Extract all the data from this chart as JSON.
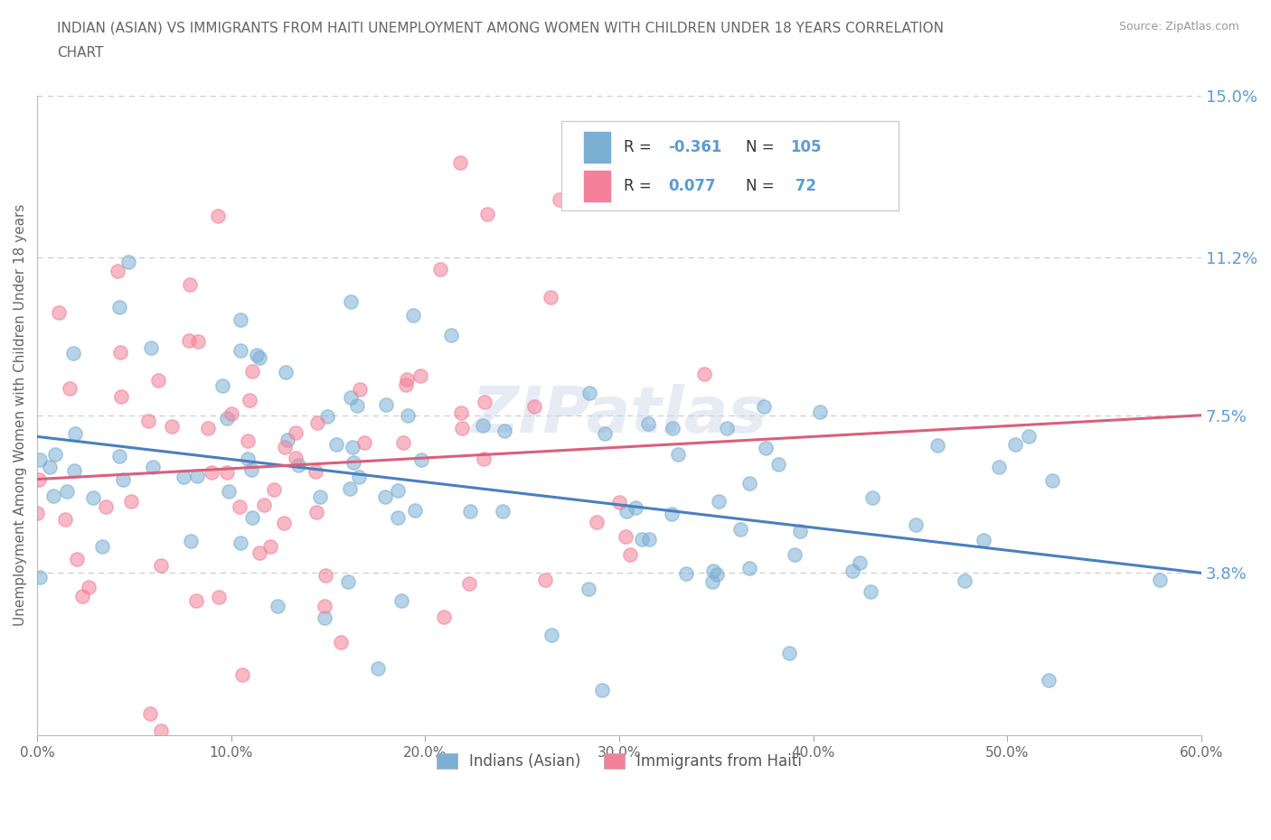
{
  "title_line1": "INDIAN (ASIAN) VS IMMIGRANTS FROM HAITI UNEMPLOYMENT AMONG WOMEN WITH CHILDREN UNDER 18 YEARS CORRELATION",
  "title_line2": "CHART",
  "source_text": "Source: ZipAtlas.com",
  "ylabel": "Unemployment Among Women with Children Under 18 years",
  "xlim": [
    0,
    0.6
  ],
  "ylim": [
    0,
    0.15
  ],
  "xtick_labels": [
    "0.0%",
    "10.0%",
    "20.0%",
    "30.0%",
    "40.0%",
    "50.0%",
    "60.0%"
  ],
  "xtick_values": [
    0.0,
    0.1,
    0.2,
    0.3,
    0.4,
    0.5,
    0.6
  ],
  "ytick_right_labels": [
    "15.0%",
    "11.2%",
    "7.5%",
    "3.8%"
  ],
  "ytick_right_values": [
    0.15,
    0.112,
    0.075,
    0.038
  ],
  "legend_label1": "Indians (Asian)",
  "legend_label2": "Immigrants from Haiti",
  "blue_color": "#7bafd4",
  "pink_color": "#f48099",
  "blue_line_color": "#4a7fc0",
  "pink_line_color": "#d9607a",
  "blue_R": -0.361,
  "blue_N": 105,
  "pink_R": 0.077,
  "pink_N": 72,
  "watermark_text": "ZIPatlas",
  "background_color": "#ffffff",
  "grid_color": "#cccccc",
  "title_color": "#666666",
  "right_tick_color": "#5b9bd5",
  "legend_R_color": "#5b9bd5",
  "legend_N_color": "#5b9bd5",
  "blue_line_y0": 0.07,
  "blue_line_y1": 0.038,
  "pink_line_y0": 0.06,
  "pink_line_y1": 0.075,
  "seed": 99
}
